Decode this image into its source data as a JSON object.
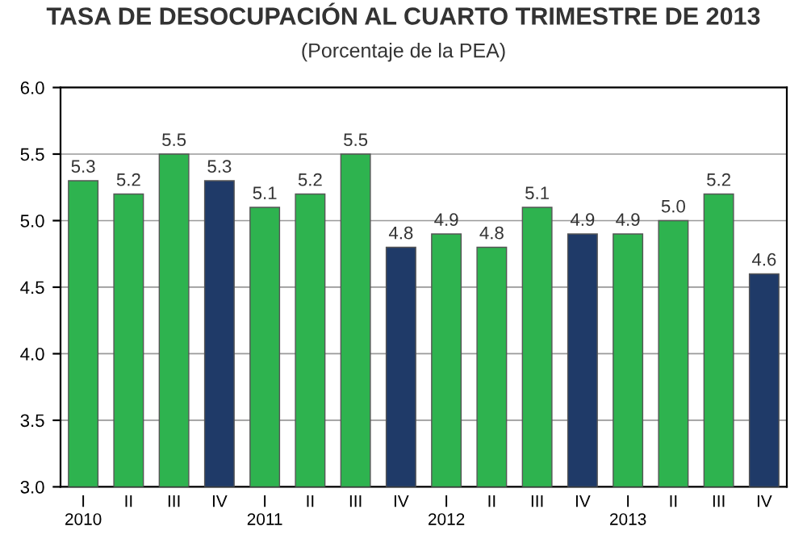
{
  "chart_data": {
    "type": "bar",
    "title": "TASA DE DESOCUPACIÓN AL CUARTO TRIMESTRE DE 2013",
    "subtitle": "(Porcentaje de la PEA)",
    "categories": [
      "I\n2010",
      "II",
      "III",
      "IV",
      "I\n2011",
      "II",
      "III",
      "IV",
      "I\n2012",
      "II",
      "III",
      "IV",
      "I\n2013",
      "II",
      "III",
      "IV"
    ],
    "values": [
      5.3,
      5.2,
      5.5,
      5.3,
      5.1,
      5.2,
      5.5,
      4.8,
      4.9,
      4.8,
      5.1,
      4.9,
      4.9,
      5.0,
      5.2,
      4.6
    ],
    "colors": [
      "#2eb34f",
      "#2eb34f",
      "#2eb34f",
      "#1f3a68",
      "#2eb34f",
      "#2eb34f",
      "#2eb34f",
      "#1f3a68",
      "#2eb34f",
      "#2eb34f",
      "#2eb34f",
      "#1f3a68",
      "#2eb34f",
      "#2eb34f",
      "#2eb34f",
      "#1f3a68"
    ],
    "ylim": [
      3.0,
      6.0
    ],
    "yticks": [
      {
        "value": 3.0,
        "label": "3.0"
      },
      {
        "value": 3.5,
        "label": "3.5"
      },
      {
        "value": 4.0,
        "label": "4.0"
      },
      {
        "value": 4.5,
        "label": "4.5"
      },
      {
        "value": 5.0,
        "label": "5.0"
      },
      {
        "value": 5.5,
        "label": "5.5"
      },
      {
        "value": 6.0,
        "label": "6.0"
      }
    ],
    "value_labels": [
      "5.3",
      "5.2",
      "5.5",
      "5.3",
      "5.1",
      "5.2",
      "5.5",
      "4.8",
      "4.9",
      "4.8",
      "5.1",
      "4.9",
      "4.9",
      "5.0",
      "5.2",
      "4.6"
    ],
    "grid": "y"
  }
}
